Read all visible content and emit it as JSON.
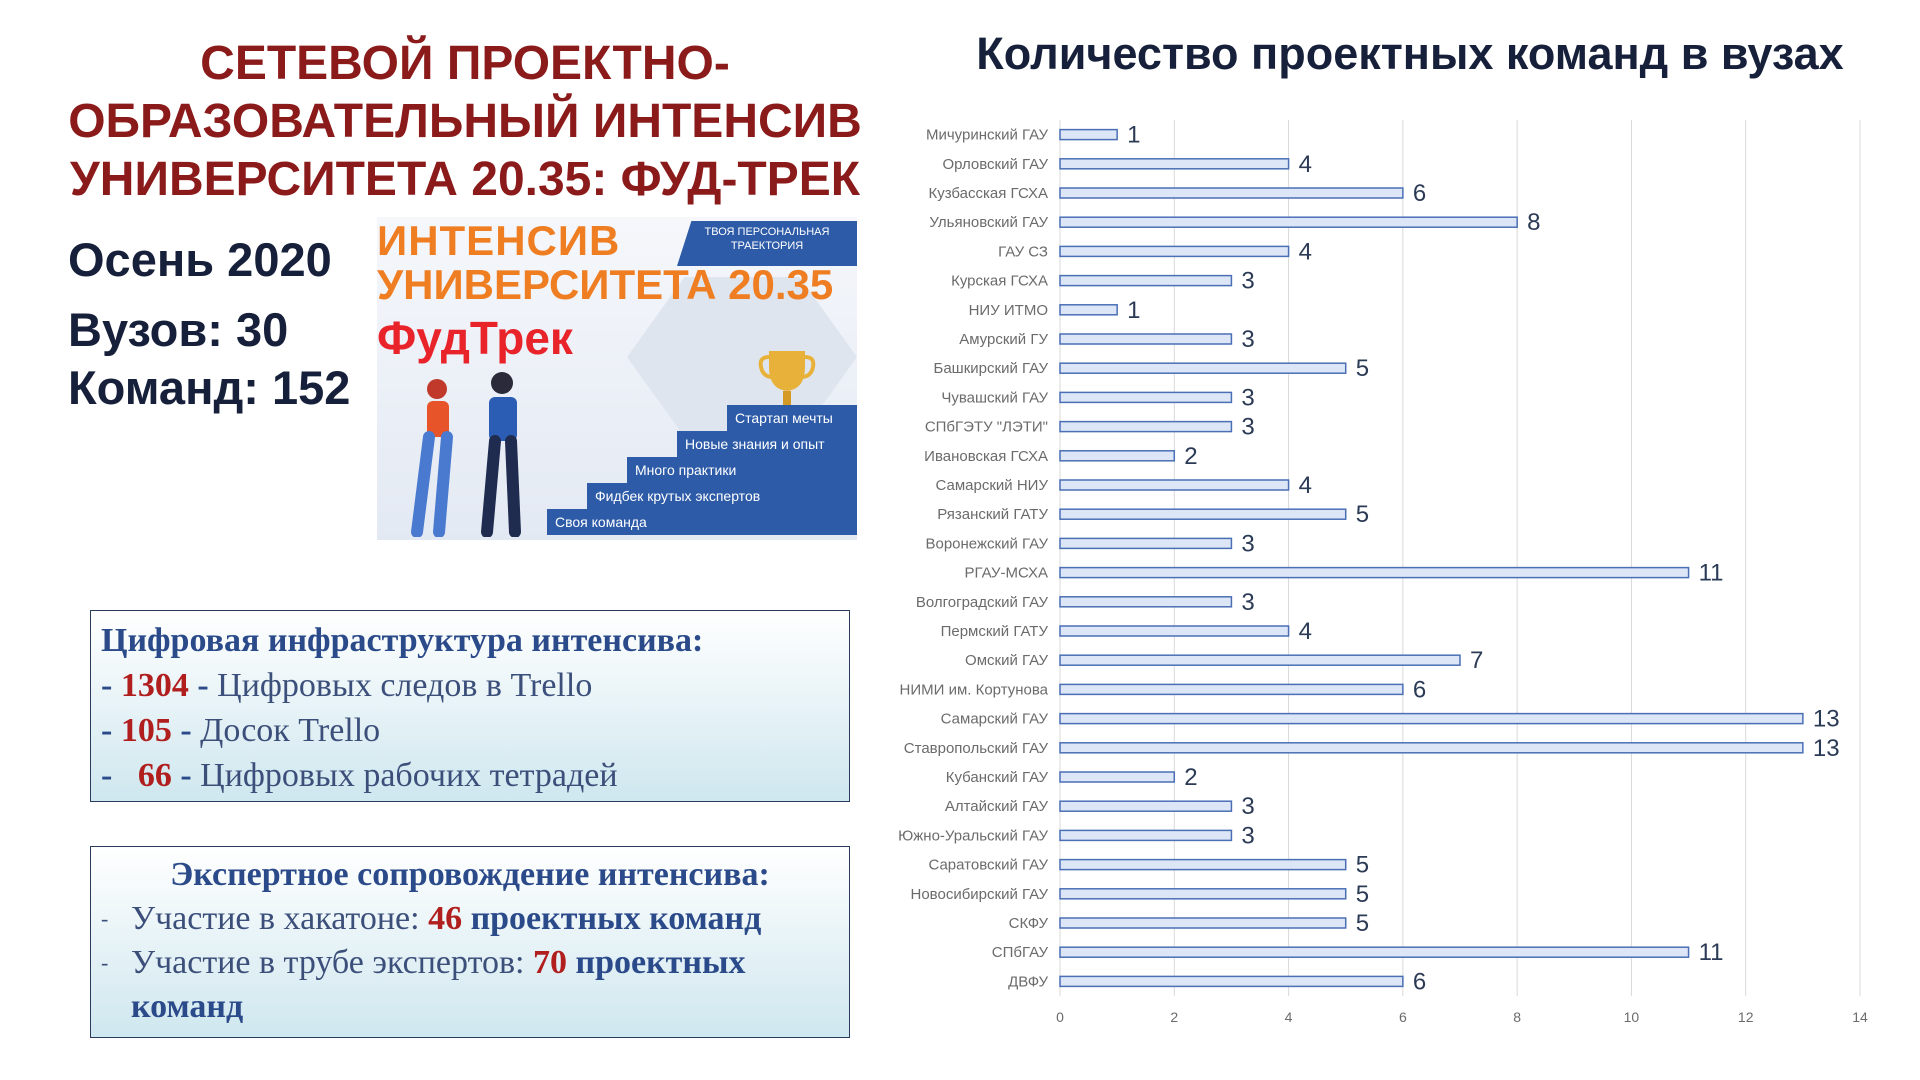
{
  "left": {
    "title_lines": [
      "СЕТЕВОЙ ПРОЕКТНО-",
      "ОБРАЗОВАТЕЛЬНЫЙ ИНТЕНСИВ",
      "УНИВЕРСИТЕТА 20.35: ФУД-ТРЕК"
    ],
    "season": "Осень 2020",
    "universities": "Вузов: 30",
    "teams": "Команд: 152"
  },
  "promo": {
    "band": "ТВОЯ ПЕРСОНАЛЬНАЯ ТРАЕКТОРИЯ",
    "line1": "ИНТЕНСИВ",
    "line2": "УНИВЕРСИТЕТА 20.35",
    "line3": "ФудТрек",
    "steps": [
      "Стартап мечты",
      "Новые знания и опыт",
      "Много практики",
      "Фидбек крутых экспертов",
      "Своя команда"
    ]
  },
  "digital": {
    "header": "Цифровая инфраструктура интенсива:",
    "items": [
      {
        "value": "1304",
        "label": "Цифровых следов в Trello"
      },
      {
        "value": "105",
        "label": "Досок Trello"
      },
      {
        "value": "66",
        "label": "Цифровых рабочих тетрадей"
      }
    ]
  },
  "expert": {
    "header": "Экспертное сопровождение интенсива:",
    "item1_prefix": "Участие в хакатоне:",
    "item1_value": "46",
    "item1_suffix": "проектных команд",
    "item2_prefix": "Участие в трубе экспертов:",
    "item2_value": "70",
    "item2_suffix": "проектных команд"
  },
  "colors": {
    "title_red": "#8B1A1A",
    "number_red": "#B01E1E",
    "bar_fill": "#dce6f6",
    "bar_stroke": "#4a6fb5",
    "grid": "#d9d9d9"
  },
  "chart_data": {
    "type": "bar",
    "orientation": "horizontal",
    "title": "Количество проектных команд в вузах",
    "categories": [
      "Мичуринский ГАУ",
      "Орловский ГАУ",
      "Кузбасская ГСХА",
      "Ульяновский ГАУ",
      "ГАУ СЗ",
      "Курская ГСХА",
      "НИУ ИТМО",
      "Амурский ГУ",
      "Башкирский ГАУ",
      "Чувашский ГАУ",
      "СПбГЭТУ \"ЛЭТИ\"",
      "Ивановская ГСХА",
      "Самарский НИУ",
      "Рязанский ГАТУ",
      "Воронежский ГАУ",
      "РГАУ-МСХА",
      "Волгоградский ГАУ",
      "Пермский ГАТУ",
      "Омский ГАУ",
      "НИМИ им. Кортунова",
      "Самарский ГАУ",
      "Ставропольский ГАУ",
      "Кубанский ГАУ",
      "Алтайский ГАУ",
      "Южно-Уральский ГАУ",
      "Саратовский ГАУ",
      "Новосибирский ГАУ",
      "СКФУ",
      "СПбГАУ",
      "ДВФУ"
    ],
    "values": [
      1,
      4,
      6,
      8,
      4,
      3,
      1,
      3,
      5,
      3,
      3,
      2,
      4,
      5,
      3,
      11,
      3,
      4,
      7,
      6,
      13,
      13,
      2,
      3,
      3,
      5,
      5,
      5,
      11,
      6
    ],
    "xlim": [
      0,
      14
    ],
    "xticks": [
      "0",
      "2",
      "4",
      "6",
      "8",
      "10",
      "12",
      "14"
    ],
    "grid": "vertical",
    "data_labels": true
  }
}
